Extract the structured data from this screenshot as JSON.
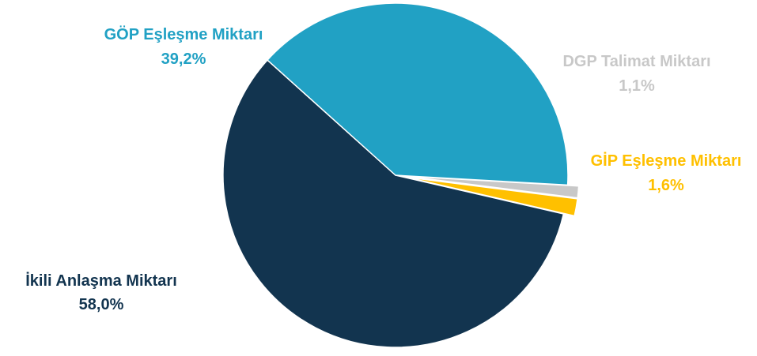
{
  "chart_data": {
    "type": "pie",
    "slices": [
      {
        "label": "İkili Anlaşma Miktarı",
        "value": 58.0,
        "value_label": "58,0%",
        "color": "#12344f"
      },
      {
        "label": "GÖP Eşleşme Miktarı",
        "value": 39.2,
        "value_label": "39,2%",
        "color": "#21a1c4"
      },
      {
        "label": "DGP Talimat Miktarı",
        "value": 1.1,
        "value_label": "1,1%",
        "color": "#c8c8c8"
      },
      {
        "label": "GİP Eşleşme Miktarı",
        "value": 1.6,
        "value_label": "1,6%",
        "color": "#ffc000"
      }
    ],
    "exploded": [
      "DGP Talimat Miktarı",
      "GİP Eşleşme Miktarı"
    ],
    "legend": "none"
  }
}
